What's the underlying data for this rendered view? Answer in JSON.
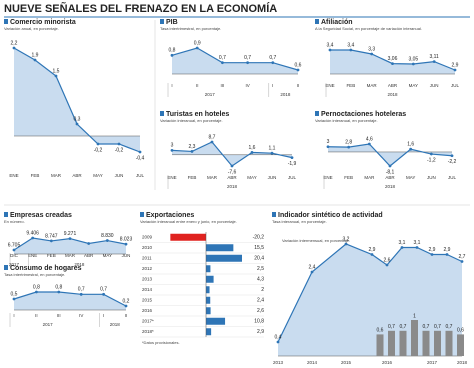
{
  "title": "NUEVE SEÑALES DEL FRENAZO EN LA ECONOMÍA",
  "chart_data": [
    {
      "type": "line",
      "title": "Comercio minorista",
      "subtitle": "Variación anual, en porcentaje.",
      "color": "#2e75b6",
      "categories": [
        "ENE",
        "FEB",
        "MAR",
        "ABR",
        "MAY",
        "JUN",
        "JUL"
      ],
      "values": [
        2.2,
        1.9,
        1.5,
        0.3,
        -0.2,
        -0.2,
        -0.4
      ],
      "value_labels": [
        "2,2",
        "1,9",
        "1,5",
        "0,3",
        "-0,2",
        "-0,2",
        "-0,4"
      ]
    },
    {
      "type": "line",
      "title": "PIB",
      "subtitle": "Tasa intertrimestral, en porcentaje.",
      "color": "#2e75b6",
      "categories": [
        "I",
        "II",
        "III",
        "IV",
        "I",
        "II"
      ],
      "values": [
        0.8,
        0.9,
        0.7,
        0.7,
        0.7,
        0.6
      ],
      "value_labels": [
        "0,8",
        "0,9",
        "0,7",
        "0,7",
        "0,7",
        "0,6"
      ],
      "groups": [
        {
          "label": "2017",
          "count": 4
        },
        {
          "label": "2018",
          "count": 2
        }
      ]
    },
    {
      "type": "line",
      "title": "Afiliación",
      "subtitle": "A la Seguridad Social, en porcentaje de variación interanual.",
      "color": "#2e75b6",
      "categories": [
        "ENE",
        "FEB",
        "MAR",
        "ABR",
        "MAY",
        "JUN",
        "JUL"
      ],
      "values": [
        3.4,
        3.4,
        3.3,
        3.06,
        3.05,
        3.11,
        2.9
      ],
      "value_labels": [
        "3,4",
        "3,4",
        "3,3",
        "3,06",
        "3,05",
        "3,11",
        "2,9"
      ],
      "groups": [
        {
          "label": "2018",
          "count": 7
        }
      ]
    },
    {
      "type": "line",
      "title": "Turistas en hoteles",
      "subtitle": "Variación interanual, en porcentaje.",
      "color": "#2e75b6",
      "categories": [
        "ENE",
        "FEB",
        "MAR",
        "ABR",
        "MAY",
        "JUN",
        "JUL"
      ],
      "values": [
        3,
        2.3,
        8.7,
        -7.6,
        1.6,
        1.1,
        -1.9
      ],
      "value_labels": [
        "3",
        "2,3",
        "8,7",
        "-7,6",
        "1,6",
        "1,1",
        "-1,9"
      ],
      "groups": [
        {
          "label": "2018",
          "count": 7
        }
      ]
    },
    {
      "type": "line",
      "title": "Pernoctaciones hoteleras",
      "subtitle": "Variación interanual, en porcentaje.",
      "color": "#2e75b6",
      "categories": [
        "ENE",
        "FEB",
        "MAR",
        "ABR",
        "MAY",
        "JUN",
        "JUL"
      ],
      "values": [
        3,
        2.8,
        4.6,
        -8.1,
        1.6,
        -1.2,
        -2.2
      ],
      "value_labels": [
        "3",
        "2,8",
        "4,6",
        "-8,1",
        "1,6",
        "-1,2",
        "-2,2"
      ],
      "groups": [
        {
          "label": "2018",
          "count": 7
        }
      ]
    },
    {
      "type": "line",
      "title": "Empresas creadas",
      "subtitle": "En número.",
      "color": "#2e75b6",
      "categories": [
        "DIC",
        "ENE",
        "FEB",
        "MAR",
        "ABR",
        "MAY",
        "JUN"
      ],
      "values": [
        6705,
        9406,
        8747,
        9271,
        8171,
        8830,
        8023
      ],
      "value_labels": [
        "6.705",
        "9.406",
        "8.747",
        "9.271",
        null,
        "8.830",
        "8.023"
      ],
      "groups": [
        {
          "label": "2017",
          "count": 1
        },
        {
          "label": "2018",
          "count": 6
        }
      ]
    },
    {
      "type": "line",
      "title": "Consumo de hogares",
      "subtitle": "Tasa intertrimestral, en porcentaje.",
      "color": "#2e75b6",
      "categories": [
        "I",
        "II",
        "III",
        "IV",
        "I",
        "II"
      ],
      "values": [
        0.5,
        0.8,
        0.8,
        0.7,
        0.7,
        0.2
      ],
      "value_labels": [
        "0,5",
        "0,8",
        "0,8",
        "0,7",
        "0,7",
        "0,2"
      ],
      "groups": [
        {
          "label": "2017",
          "count": 4
        },
        {
          "label": "2018",
          "count": 2
        }
      ]
    },
    {
      "type": "hbar",
      "title": "Exportaciones",
      "subtitle": "Variación interanual entre enero y junio, en porcentaje.",
      "categories": [
        "2009",
        "2010",
        "2011",
        "2012",
        "2013",
        "2014",
        "2015",
        "2016",
        "2017*",
        "2018*"
      ],
      "values": [
        -20.2,
        15.5,
        20.4,
        2.5,
        4.3,
        2,
        2.4,
        2.6,
        10.8,
        2.9
      ],
      "value_labels": [
        "-20,2",
        "15,5",
        "20,4",
        "2,5",
        "4,3",
        "2",
        "2,4",
        "2,6",
        "10,8",
        "2,9"
      ],
      "colors": [
        "#e0221f",
        "#2e75b6",
        "#2e75b6",
        "#2e75b6",
        "#2e75b6",
        "#2e75b6",
        "#2e75b6",
        "#2e75b6",
        "#2e75b6",
        "#2e75b6"
      ],
      "note": "*Datos provisionales."
    },
    {
      "type": "combo",
      "title": "Indicador sintético de actividad",
      "subtitle": "Tasa interanual, en porcentaje.",
      "color": "#2e75b6",
      "categories": [
        "2013",
        "2014",
        "2015",
        null,
        "2016",
        null,
        null,
        "2017",
        null,
        "2018"
      ],
      "values": [
        0.4,
        2.4,
        3.2,
        2.9,
        2.6,
        3.1,
        3.1,
        2.9,
        2.9,
        2.7
      ],
      "value_labels": [
        "0,4",
        "2,4",
        "3,2",
        "2,9",
        "2,6",
        "3,1",
        "3,1",
        "2,9",
        "2,9",
        "2,7"
      ],
      "bar_series": {
        "name": "Variación intermensual, en porcentaje.",
        "color": "#8a8a8a",
        "values": [
          0.6,
          0.7,
          0.7,
          1,
          0.7,
          0.7,
          0.7,
          0.6
        ],
        "value_labels": [
          "0,6",
          "0,7",
          "0,7",
          "1",
          "0,7",
          "0,7",
          "0,7",
          "0,6"
        ]
      }
    }
  ]
}
